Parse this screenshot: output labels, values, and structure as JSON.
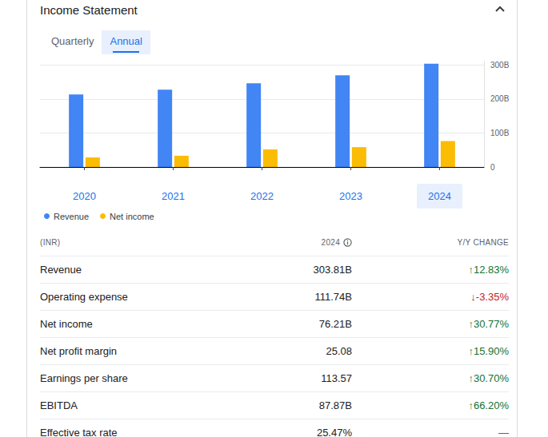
{
  "header": {
    "title": "Income Statement"
  },
  "tabs": {
    "items": [
      "Quarterly",
      "Annual"
    ],
    "selected": "Annual"
  },
  "chart_data": {
    "type": "bar",
    "categories": [
      "2020",
      "2021",
      "2022",
      "2023",
      "2024"
    ],
    "series": [
      {
        "name": "Revenue",
        "color": "#4285f4",
        "values": [
          213,
          227,
          246,
          269.3,
          303.81
        ]
      },
      {
        "name": "Net income",
        "color": "#fbbc04",
        "values": [
          28,
          33,
          51.6,
          58.3,
          76.21
        ]
      }
    ],
    "ylim": [
      0,
      310
    ],
    "yticks": [
      0,
      {
        "value": 100,
        "label": "100B"
      },
      {
        "value": 200,
        "label": "200B"
      },
      {
        "value": 300,
        "label": "300B"
      }
    ],
    "grid": true,
    "legend": "bottom-left"
  },
  "table": {
    "header": [
      "(INR)",
      "2024",
      "Y/Y CHANGE"
    ],
    "rows": [
      [
        "Revenue",
        "303.81B",
        "↑12.83%"
      ],
      [
        "Operating expense",
        "111.74B",
        "↓-3.35%"
      ],
      [
        "Net income",
        "76.21B",
        "↑30.77%"
      ],
      [
        "Net profit margin",
        "25.08",
        "↑15.90%"
      ],
      [
        "Earnings per share",
        "113.57",
        "↑30.70%"
      ],
      [
        "EBITDA",
        "87.87B",
        "↑66.20%"
      ],
      [
        "Effective tax rate",
        "25.47%",
        "—"
      ]
    ]
  }
}
